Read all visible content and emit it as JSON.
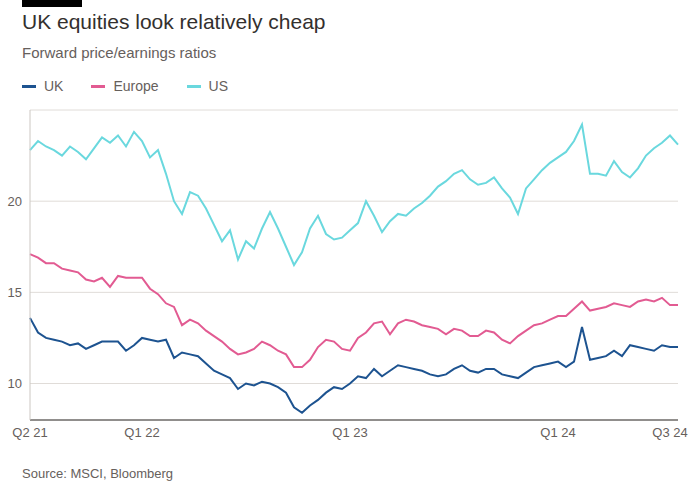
{
  "chart_data": {
    "type": "line",
    "title": "UK equities look relatively cheap",
    "subtitle": "Forward price/earnings ratios",
    "source": "Source: MSCI, Bloomberg",
    "legend": "top-left",
    "grid": true,
    "ylim": [
      8,
      25
    ],
    "yticks": [
      10,
      15,
      20
    ],
    "categories": [
      "Q2 21",
      null,
      null,
      null,
      null,
      null,
      null,
      null,
      null,
      null,
      null,
      null,
      null,
      null,
      "Q1 22",
      null,
      null,
      null,
      null,
      null,
      null,
      null,
      null,
      null,
      null,
      null,
      null,
      null,
      null,
      null,
      null,
      null,
      null,
      null,
      null,
      null,
      null,
      null,
      null,
      null,
      "Q1 23",
      null,
      null,
      null,
      null,
      null,
      null,
      null,
      null,
      null,
      null,
      null,
      null,
      null,
      null,
      null,
      null,
      null,
      null,
      null,
      null,
      null,
      null,
      null,
      null,
      null,
      "Q1 24",
      null,
      null,
      null,
      null,
      null,
      null,
      null,
      null,
      null,
      null,
      null,
      null,
      null,
      "Q3 24",
      null
    ],
    "series": [
      {
        "name": "UK",
        "color": "#1d5390",
        "values": [
          13.6,
          12.8,
          12.5,
          12.4,
          12.3,
          12.1,
          12.2,
          11.9,
          12.1,
          12.3,
          12.3,
          12.3,
          11.8,
          12.1,
          12.5,
          12.4,
          12.3,
          12.4,
          11.4,
          11.7,
          11.6,
          11.5,
          11.1,
          10.7,
          10.5,
          10.3,
          9.7,
          10.0,
          9.9,
          10.1,
          10.0,
          9.8,
          9.5,
          8.7,
          8.4,
          8.8,
          9.1,
          9.5,
          9.8,
          9.7,
          10.0,
          10.4,
          10.3,
          10.8,
          10.4,
          10.7,
          11.0,
          10.9,
          10.8,
          10.7,
          10.5,
          10.4,
          10.5,
          10.8,
          11.0,
          10.7,
          10.6,
          10.8,
          10.8,
          10.5,
          10.4,
          10.3,
          10.6,
          10.9,
          11.0,
          11.1,
          11.2,
          10.9,
          11.2,
          13.1,
          11.3,
          11.4,
          11.5,
          11.8,
          11.5,
          12.1,
          12.0,
          11.9,
          11.8,
          12.1,
          12.0,
          12.0
        ]
      },
      {
        "name": "Europe",
        "color": "#e25b92",
        "values": [
          17.1,
          16.9,
          16.6,
          16.6,
          16.3,
          16.2,
          16.1,
          15.7,
          15.6,
          15.8,
          15.3,
          15.9,
          15.8,
          15.8,
          15.8,
          15.2,
          14.9,
          14.4,
          14.2,
          13.2,
          13.5,
          13.3,
          12.9,
          12.6,
          12.3,
          11.9,
          11.6,
          11.7,
          11.9,
          12.3,
          12.1,
          11.8,
          11.6,
          10.9,
          10.9,
          11.3,
          12.0,
          12.4,
          12.3,
          11.9,
          11.8,
          12.5,
          12.8,
          13.3,
          13.4,
          12.7,
          13.3,
          13.5,
          13.4,
          13.2,
          13.1,
          13.0,
          12.7,
          13.0,
          12.9,
          12.6,
          12.6,
          12.9,
          12.8,
          12.4,
          12.2,
          12.6,
          12.9,
          13.2,
          13.3,
          13.5,
          13.7,
          13.7,
          14.1,
          14.5,
          14.0,
          14.1,
          14.2,
          14.4,
          14.3,
          14.2,
          14.5,
          14.6,
          14.5,
          14.7,
          14.3,
          14.3
        ]
      },
      {
        "name": "US",
        "color": "#6ad8de",
        "values": [
          22.8,
          23.3,
          23.0,
          22.8,
          22.5,
          23.0,
          22.7,
          22.3,
          22.9,
          23.5,
          23.2,
          23.6,
          23.0,
          23.8,
          23.3,
          22.4,
          22.8,
          21.5,
          20.0,
          19.3,
          20.5,
          20.3,
          19.6,
          18.7,
          17.8,
          18.4,
          16.8,
          17.8,
          17.4,
          18.5,
          19.4,
          18.5,
          17.5,
          16.5,
          17.2,
          18.5,
          19.2,
          18.2,
          17.9,
          18.0,
          18.4,
          18.8,
          20.0,
          19.2,
          18.3,
          18.9,
          19.3,
          19.2,
          19.6,
          19.9,
          20.3,
          20.8,
          21.1,
          21.5,
          21.7,
          21.2,
          20.9,
          21.0,
          21.3,
          20.7,
          20.2,
          19.3,
          20.7,
          21.2,
          21.7,
          22.1,
          22.4,
          22.7,
          23.3,
          24.2,
          21.5,
          21.5,
          21.4,
          22.2,
          21.6,
          21.3,
          21.8,
          22.5,
          22.9,
          23.2,
          23.6,
          23.1
        ]
      }
    ]
  }
}
